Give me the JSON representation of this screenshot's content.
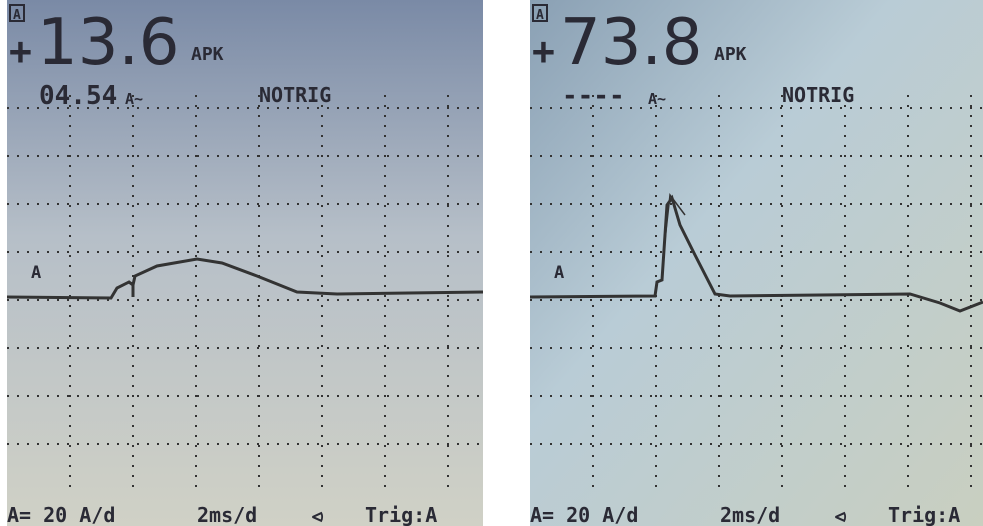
{
  "screens": [
    {
      "channel": "A",
      "sign": "+",
      "reading": "13.6",
      "reading_unit": "APK",
      "secondary": "04.54",
      "secondary_unit": "A~",
      "status": "NOTRIG",
      "trace_label": "A",
      "footer": {
        "range": "A= 20 A/d",
        "timebase": "2ms/d",
        "trigger": "Trig:A"
      }
    },
    {
      "channel": "A",
      "sign": "+",
      "reading": "73.8",
      "reading_unit": "APK",
      "secondary": "----",
      "secondary_unit": "A~",
      "status": "NOTRIG",
      "trace_label": "A",
      "footer": {
        "range": "A= 20 A/d",
        "timebase": "2ms/d",
        "trigger": "Trig:A"
      }
    }
  ]
}
